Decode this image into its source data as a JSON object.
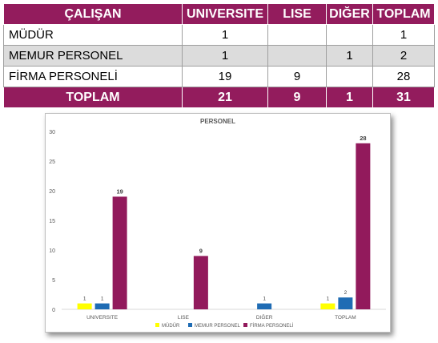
{
  "table": {
    "headers": [
      "ÇALIŞAN",
      "UNIVERSITE",
      "LISE",
      "DIĞER",
      "TOPLAM"
    ],
    "rows": [
      {
        "label": "MÜDÜR",
        "cells": [
          "1",
          "",
          "",
          "1"
        ]
      },
      {
        "label": "MEMUR PERSONEL",
        "cells": [
          "1",
          "",
          "1",
          "2"
        ]
      },
      {
        "label": "FİRMA PERSONELİ",
        "cells": [
          "19",
          "9",
          "",
          "28"
        ]
      }
    ],
    "total": {
      "label": "TOPLAM",
      "cells": [
        "21",
        "9",
        "1",
        "31"
      ]
    }
  },
  "colors": {
    "table_header": "#931c5d",
    "mudur": "#ffff00",
    "memur": "#1f6cb4",
    "firma": "#921a5c"
  },
  "chart_data": {
    "type": "bar",
    "title": "PERSONEL",
    "categories": [
      "UNIVERSITE",
      "LISE",
      "DIĞER",
      "TOPLAM"
    ],
    "series": [
      {
        "name": "MÜDÜR",
        "color": "#ffff00",
        "values": [
          1,
          null,
          null,
          1
        ]
      },
      {
        "name": "MEMUR PERSONEL",
        "color": "#1f6cb4",
        "values": [
          1,
          null,
          1,
          2
        ]
      },
      {
        "name": "FİRMA PERSONELİ",
        "color": "#921a5c",
        "values": [
          19,
          9,
          null,
          28
        ]
      }
    ],
    "ylim": [
      0,
      30
    ],
    "yticks": [
      0,
      5,
      10,
      15,
      20,
      25,
      30
    ],
    "grid": false,
    "legend": "bottom"
  }
}
